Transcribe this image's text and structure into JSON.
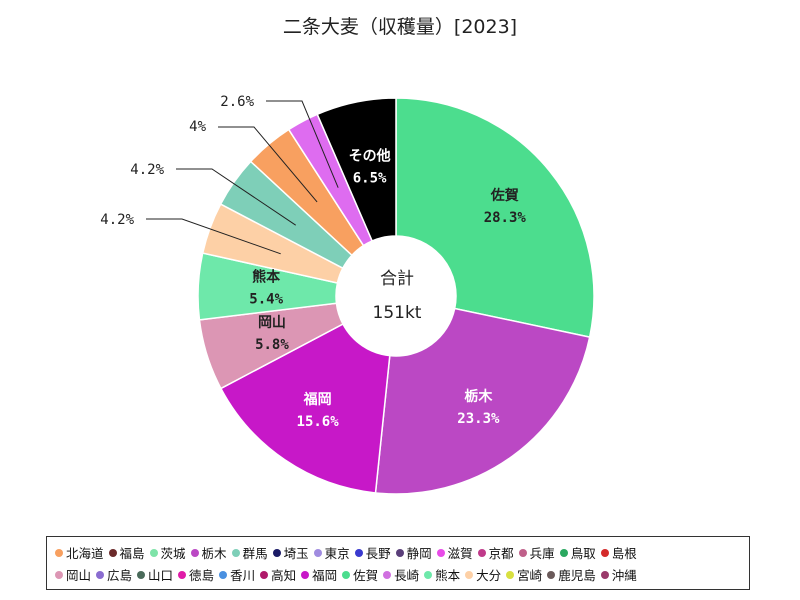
{
  "chart_data": {
    "type": "pie",
    "donut": true,
    "title": "二条大麦（収穫量）[2023]",
    "center_label": [
      "合計",
      "151kt"
    ],
    "slices": [
      {
        "name": "佐賀",
        "label": "28.3%",
        "value": 28.3,
        "color": "#4cdd8e",
        "inside": true,
        "text_color": "#222222"
      },
      {
        "name": "栃木",
        "label": "23.3%",
        "value": 23.3,
        "color": "#bb48c4",
        "inside": true,
        "text_color": "#ffffff"
      },
      {
        "name": "福岡",
        "label": "15.6%",
        "value": 15.6,
        "color": "#c718c8",
        "inside": true,
        "text_color": "#ffffff"
      },
      {
        "name": "岡山",
        "label": "5.8%",
        "value": 5.8,
        "color": "#dc96b4",
        "inside": true,
        "text_color": "#222222"
      },
      {
        "name": "熊本",
        "label": "5.4%",
        "value": 5.4,
        "color": "#6ee8aa",
        "inside": true,
        "text_color": "#222222"
      },
      {
        "name": "",
        "label": "4.2%",
        "value": 4.2,
        "color": "#fdd0a6",
        "inside": false
      },
      {
        "name": "",
        "label": "4.2%",
        "value": 4.2,
        "color": "#7ecfb8",
        "inside": false
      },
      {
        "name": "",
        "label": "4%",
        "value": 4.0,
        "color": "#f8a060",
        "inside": false
      },
      {
        "name": "",
        "label": "2.6%",
        "value": 2.6,
        "color": "#de6cf0",
        "inside": false
      },
      {
        "name": "その他",
        "label": "6.5%",
        "value": 6.5,
        "color": "#000000",
        "inside": true,
        "text_color": "#ffffff"
      }
    ],
    "legend": [
      [
        {
          "name": "北海道",
          "color": "#f8a060"
        },
        {
          "name": "福島",
          "color": "#6b2a2a"
        },
        {
          "name": "茨城",
          "color": "#7ee3a8"
        },
        {
          "name": "栃木",
          "color": "#bb48c4"
        },
        {
          "name": "群馬",
          "color": "#7ecfb8"
        },
        {
          "name": "埼玉",
          "color": "#1a1a66"
        },
        {
          "name": "東京",
          "color": "#a08ce0"
        },
        {
          "name": "長野",
          "color": "#3a3acf"
        },
        {
          "name": "静岡",
          "color": "#5a3f7a"
        },
        {
          "name": "滋賀",
          "color": "#e84ce8"
        },
        {
          "name": "京都",
          "color": "#c03a8a"
        },
        {
          "name": "兵庫",
          "color": "#c0608a"
        },
        {
          "name": "鳥取",
          "color": "#2aa860"
        },
        {
          "name": "島根",
          "color": "#d42a2a"
        }
      ],
      [
        {
          "name": "岡山",
          "color": "#dc96b4"
        },
        {
          "name": "広島",
          "color": "#8a6cd0"
        },
        {
          "name": "山口",
          "color": "#4a6a5a"
        },
        {
          "name": "徳島",
          "color": "#e01ca8"
        },
        {
          "name": "香川",
          "color": "#4a90e0"
        },
        {
          "name": "高知",
          "color": "#b01a6a"
        },
        {
          "name": "福岡",
          "color": "#c718c8"
        },
        {
          "name": "佐賀",
          "color": "#4cdd8e"
        },
        {
          "name": "長崎",
          "color": "#d070e0"
        },
        {
          "name": "熊本",
          "color": "#6ee8aa"
        },
        {
          "name": "大分",
          "color": "#fdd0a6"
        },
        {
          "name": "宮崎",
          "color": "#d8e040"
        },
        {
          "name": "鹿児島",
          "color": "#6a5a5a"
        },
        {
          "name": "沖縄",
          "color": "#9a3a6a"
        }
      ]
    ]
  }
}
